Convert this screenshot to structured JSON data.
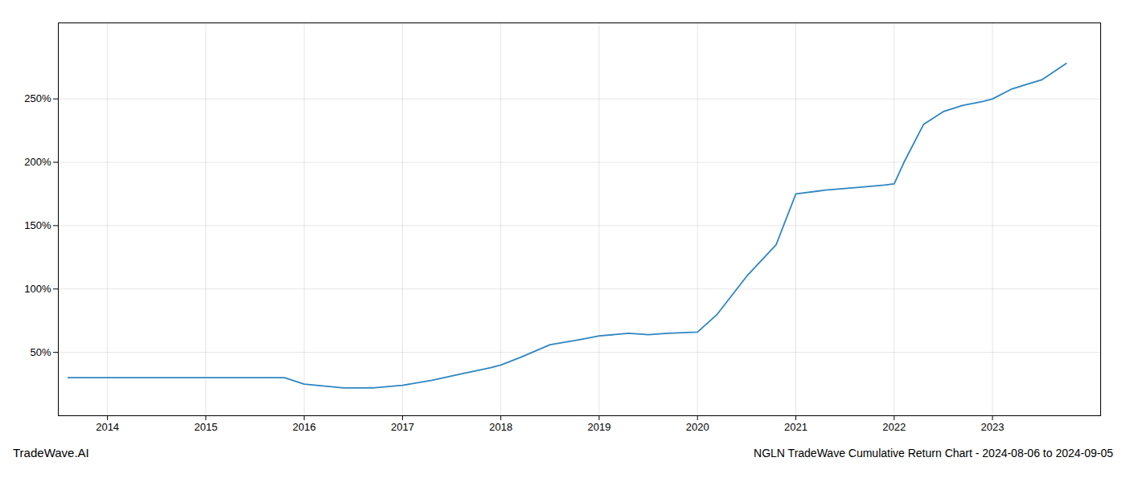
{
  "chart_data": {
    "type": "line",
    "title": "NGLN TradeWave Cumulative Return Chart - 2024-08-06 to 2024-09-05",
    "annotations": [
      "TradeWave.AI"
    ],
    "x": [
      2013.6,
      2014.0,
      2014.3,
      2014.6,
      2015.0,
      2015.4,
      2015.8,
      2016.0,
      2016.4,
      2016.7,
      2017.0,
      2017.3,
      2017.6,
      2017.9,
      2018.0,
      2018.2,
      2018.5,
      2018.8,
      2019.0,
      2019.3,
      2019.5,
      2019.7,
      2020.0,
      2020.2,
      2020.5,
      2020.8,
      2021.0,
      2021.3,
      2021.6,
      2021.9,
      2022.0,
      2022.1,
      2022.3,
      2022.5,
      2022.7,
      2022.9,
      2023.0,
      2023.2,
      2023.5,
      2023.75
    ],
    "values": [
      30,
      30,
      30,
      30,
      30,
      30,
      30,
      25,
      22,
      22,
      24,
      28,
      33,
      38,
      40,
      46,
      56,
      60,
      63,
      65,
      64,
      65,
      66,
      80,
      110,
      135,
      175,
      178,
      180,
      182,
      183,
      200,
      230,
      240,
      245,
      248,
      250,
      258,
      265,
      278
    ],
    "color": "#2e86c1",
    "xlim": [
      2013.5,
      2024.1
    ],
    "xticks": [
      2014,
      2015,
      2016,
      2017,
      2018,
      2019,
      2020,
      2021,
      2022,
      2023
    ],
    "ylim": [
      0,
      310
    ],
    "yticks": [
      {
        "value": 50,
        "label": "50%"
      },
      {
        "value": 100,
        "label": "100%"
      },
      {
        "value": 150,
        "label": "150%"
      },
      {
        "value": 200,
        "label": "200%"
      },
      {
        "value": 250,
        "label": "250%"
      }
    ],
    "grid": true
  }
}
